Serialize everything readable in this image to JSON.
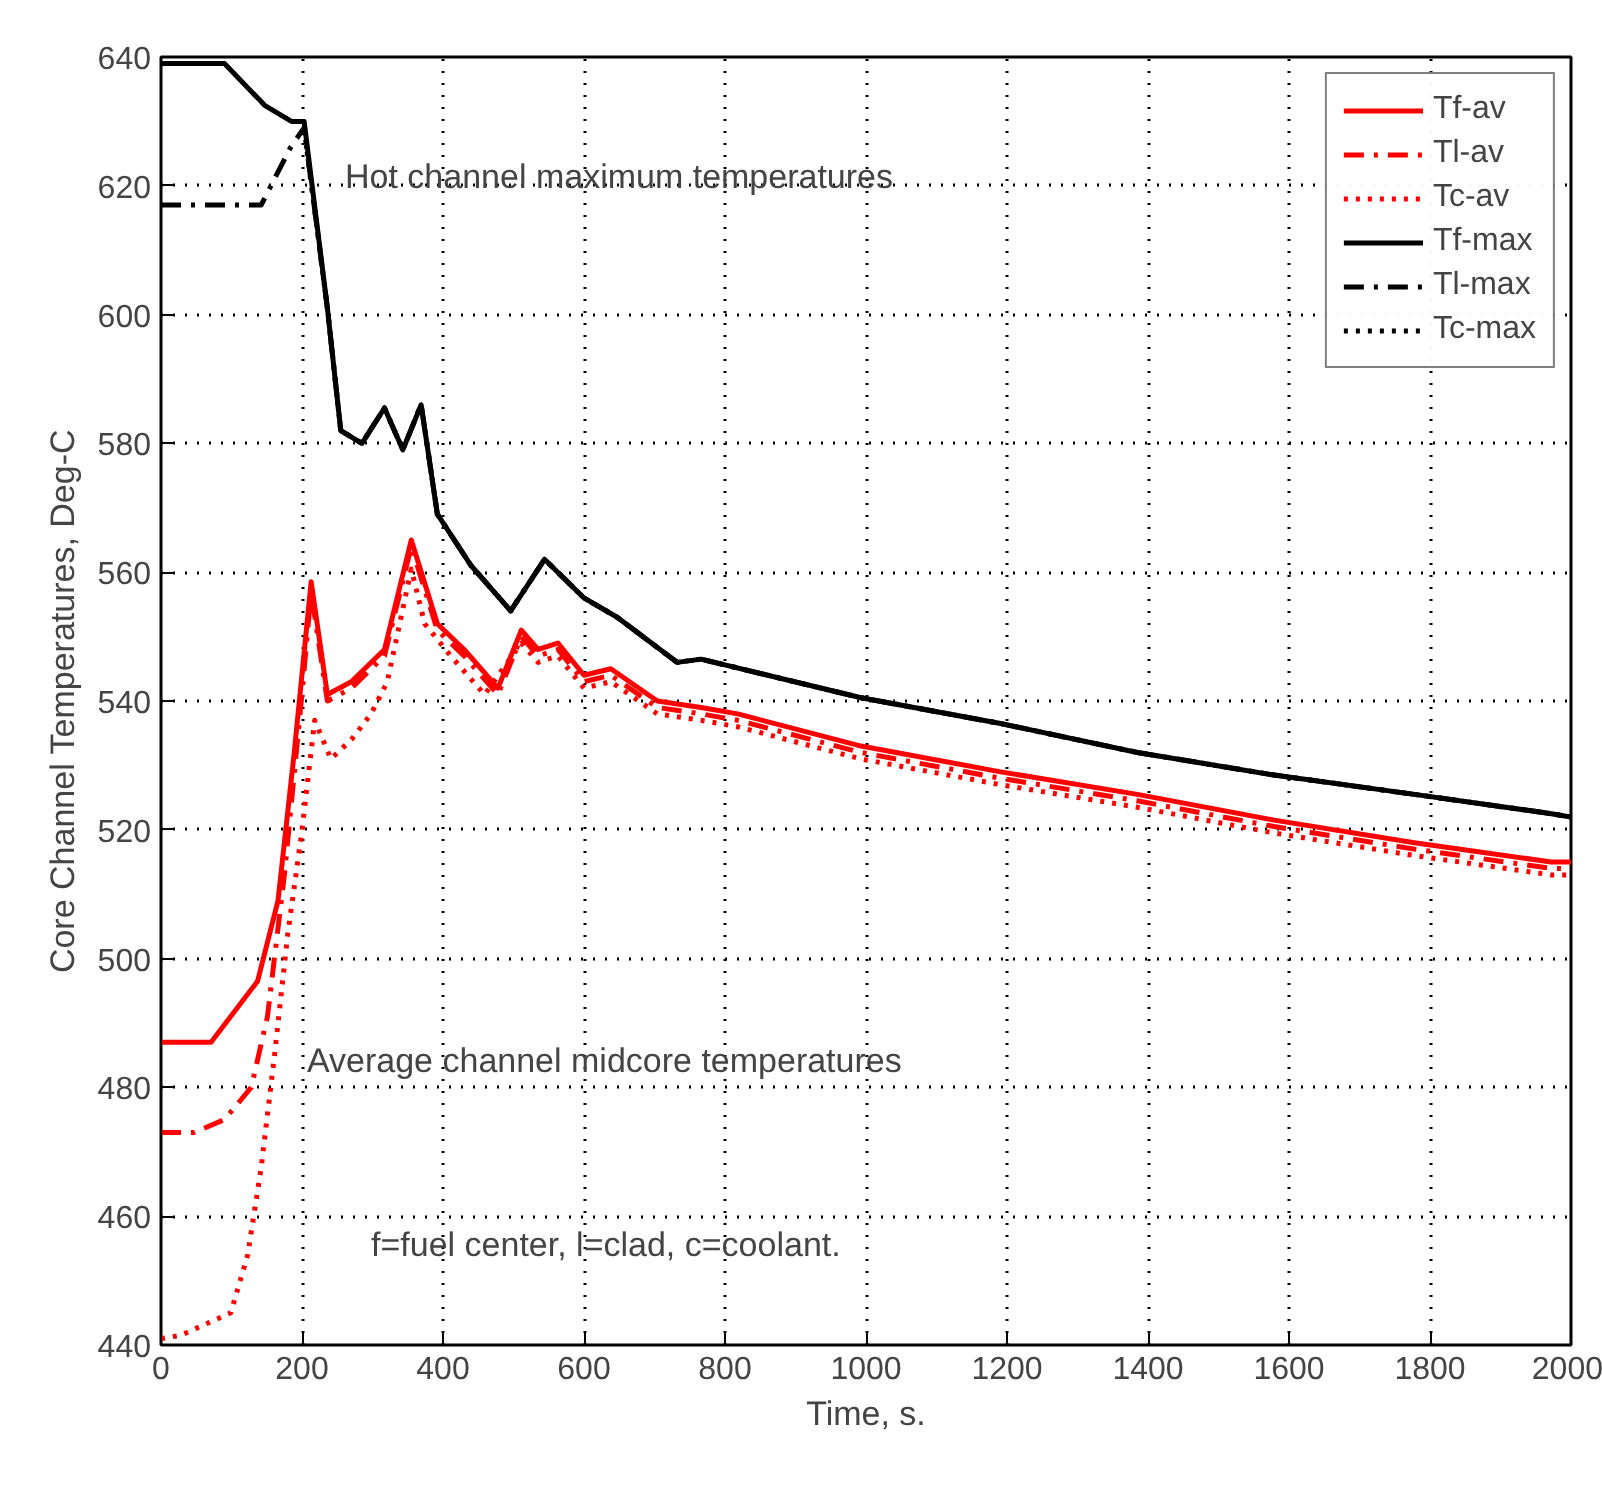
{
  "chart_data": {
    "type": "line",
    "xlabel": "Time, s.",
    "ylabel": "Core Channel Temperatures, Deg-C",
    "xlim": [
      0,
      2000
    ],
    "ylim": [
      440,
      640
    ],
    "xticks": [
      0,
      200,
      400,
      600,
      800,
      1000,
      1200,
      1400,
      1600,
      1800,
      2000
    ],
    "yticks": [
      440,
      460,
      480,
      500,
      520,
      540,
      560,
      580,
      600,
      620,
      640
    ],
    "grid": true,
    "legend": "top right",
    "annotations": [
      "Hot channel maximum temperatures",
      "Average channel midcore temperatures",
      "f=fuel center, l=clad, c=coolant."
    ],
    "series": [
      {
        "name": "Tf-av",
        "color": "#ff0000",
        "line_style": "solid",
        "x": [
          0,
          71,
          137,
          166,
          189,
          213,
          236,
          270,
          317,
          355,
          392,
          430,
          478,
          511,
          535,
          563,
          600,
          638,
          704,
          766,
          818,
          993,
          1191,
          1385,
          1579,
          1778,
          1972,
          2000
        ],
        "values": [
          487,
          487,
          496.5,
          509,
          532,
          558.5,
          541,
          543,
          548,
          565,
          552,
          548,
          542,
          551,
          548,
          549,
          544,
          545,
          540,
          539,
          538,
          533,
          529,
          525.5,
          521.5,
          518,
          515,
          515
        ]
      },
      {
        "name": "Tl-av",
        "color": "#ff0000",
        "line_style": "dashdot",
        "x": [
          0,
          47,
          90,
          128,
          151,
          175,
          199,
          213,
          236,
          270,
          317,
          355,
          392,
          430,
          478,
          511,
          535,
          563,
          600,
          638,
          704,
          766,
          818,
          993,
          1191,
          1385,
          1579,
          1778,
          1972,
          2000
        ],
        "values": [
          473,
          473,
          475,
          480,
          491,
          513,
          540,
          557,
          540,
          542,
          547,
          564,
          551,
          547,
          541,
          550,
          547,
          548,
          543,
          544,
          539,
          538,
          537,
          532,
          528,
          524.5,
          520.5,
          517,
          514,
          514
        ]
      },
      {
        "name": "Tc-av",
        "color": "#ff0000",
        "line_style": "dotted",
        "x": [
          0,
          28,
          99,
          123,
          142,
          161,
          180,
          199,
          218,
          241,
          270,
          298,
          321,
          355,
          374,
          411,
          459,
          511,
          535,
          563,
          600,
          638,
          704,
          766,
          818,
          993,
          1191,
          1385,
          1579,
          1778,
          1972,
          2000
        ],
        "values": [
          441,
          441.5,
          445,
          454,
          467.5,
          485,
          504,
          519,
          537,
          531,
          534,
          538,
          543,
          560.5,
          552,
          547,
          541,
          549,
          546,
          547,
          542,
          543,
          538,
          537,
          536,
          531,
          527,
          523.5,
          519.5,
          516,
          513,
          513
        ]
      },
      {
        "name": "Tf-max",
        "color": "#000000",
        "line_style": "solid",
        "x": [
          0,
          90,
          147,
          185,
          203,
          236,
          255,
          285,
          317,
          343,
          369,
          392,
          440,
          496,
          544,
          600,
          647,
          732,
          766,
          993,
          1191,
          1385,
          1579,
          1778,
          1972,
          2000
        ],
        "values": [
          639,
          639,
          632.5,
          630,
          630,
          601,
          582,
          580,
          585.5,
          579,
          586,
          569,
          561,
          554,
          562,
          556,
          553,
          546,
          546.5,
          540.5,
          536.5,
          532,
          528.5,
          525.5,
          522.5,
          522
        ]
      },
      {
        "name": "Tl-max",
        "color": "#000000",
        "line_style": "dashdot",
        "x": [
          0,
          142,
          184,
          203,
          236,
          255,
          285,
          317,
          343,
          369,
          392,
          440,
          496,
          544,
          600,
          647,
          732,
          766,
          993,
          1191,
          1385,
          1579,
          1778,
          1972,
          2000
        ],
        "values": [
          617,
          617,
          626,
          629,
          601,
          582,
          580,
          585.5,
          579,
          586,
          569,
          561,
          554,
          562,
          556,
          553,
          546,
          546.5,
          540.5,
          536.5,
          532,
          528.5,
          525.5,
          522.5,
          522
        ]
      },
      {
        "name": "Tc-max",
        "color": "#000000",
        "line_style": "dotted",
        "x": [
          203,
          236,
          255,
          285,
          317,
          343,
          369,
          392,
          440,
          496,
          544,
          600,
          647,
          732,
          766,
          993,
          1191,
          1385,
          1579,
          1778,
          1972,
          2000
        ],
        "values": [
          629,
          601,
          582,
          580,
          585.5,
          579,
          586,
          569,
          561,
          554,
          562,
          556,
          553,
          546,
          546.5,
          540.5,
          536.5,
          532,
          528.5,
          525.5,
          522.5,
          522
        ]
      }
    ]
  }
}
